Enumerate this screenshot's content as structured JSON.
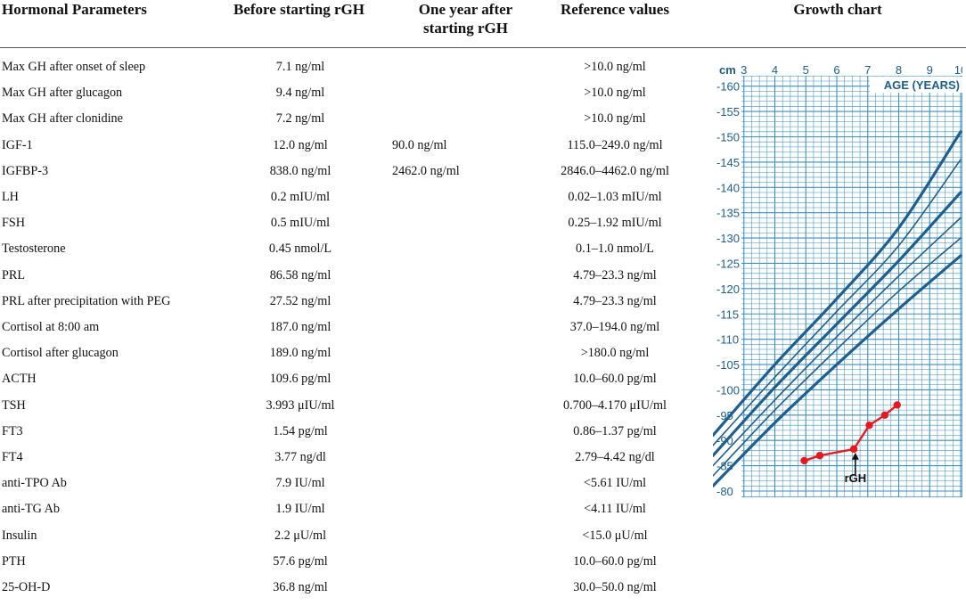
{
  "headers": {
    "parameter": "Hormonal Parameters",
    "before": "Before starting rGH",
    "after_line1": "One year after",
    "after_line2": "starting rGH",
    "reference": "Reference values",
    "growth": "Growth chart"
  },
  "rows": [
    {
      "param": "Max GH after onset of sleep",
      "before": "7.1 ng/ml",
      "after": "",
      "ref": ">10.0 ng/ml"
    },
    {
      "param": "Max GH after glucagon",
      "before": "9.4 ng/ml",
      "after": "",
      "ref": ">10.0 ng/ml"
    },
    {
      "param": "Max GH after clonidine",
      "before": "7.2 ng/ml",
      "after": "",
      "ref": ">10.0 ng/ml"
    },
    {
      "param": "IGF-1",
      "before": "12.0 ng/ml",
      "after": "90.0 ng/ml",
      "ref": "115.0–249.0 ng/ml"
    },
    {
      "param": "IGFBP-3",
      "before": "838.0 ng/ml",
      "after": "2462.0 ng/ml",
      "ref": "2846.0–4462.0 ng/ml"
    },
    {
      "param": "LH",
      "before": "0.2 mIU/ml",
      "after": "",
      "ref": "0.02–1.03 mIU/ml"
    },
    {
      "param": "FSH",
      "before": "0.5 mIU/ml",
      "after": "",
      "ref": "0.25–1.92 mIU/ml"
    },
    {
      "param": "Testosterone",
      "before": "0.45 nmol/L",
      "after": "",
      "ref": "0.1–1.0 nmol/L"
    },
    {
      "param": "PRL",
      "before": "86.58 ng/ml",
      "after": "",
      "ref": "4.79–23.3 ng/ml"
    },
    {
      "param": "PRL after precipitation with PEG",
      "before": "27.52 ng/ml",
      "after": "",
      "ref": "4.79–23.3 ng/ml"
    },
    {
      "param": "Cortisol at 8:00 am",
      "before": "187.0 ng/ml",
      "after": "",
      "ref": "37.0–194.0 ng/ml"
    },
    {
      "param": "Cortisol after glucagon",
      "before": "189.0 ng/ml",
      "after": "",
      "ref": ">180.0 ng/ml"
    },
    {
      "param": "ACTH",
      "before": "109.6 pg/ml",
      "after": "",
      "ref": "10.0–60.0 pg/ml"
    },
    {
      "param": "TSH",
      "before": "3.993 μIU/ml",
      "after": "",
      "ref": "0.700–4.170 μIU/ml"
    },
    {
      "param": "FT3",
      "before": "1.54 pg/ml",
      "after": "",
      "ref": "0.86–1.37 pg/ml"
    },
    {
      "param": "FT4",
      "before": "3.77 ng/dl",
      "after": "",
      "ref": "2.79–4.42 ng/dl"
    },
    {
      "param": "anti-TPO Ab",
      "before": "7.9 IU/ml",
      "after": "",
      "ref": "<5.61 IU/ml"
    },
    {
      "param": "anti-TG Ab",
      "before": "1.9 IU/ml",
      "after": "",
      "ref": "<4.11 IU/ml"
    },
    {
      "param": "Insulin",
      "before": "2.2 μU/ml",
      "after": "",
      "ref": "<15.0 μU/ml"
    },
    {
      "param": "PTH",
      "before": "57.6 pg/ml",
      "after": "",
      "ref": "10.0–60.0 pg/ml"
    },
    {
      "param": "25-OH-D",
      "before": "36.8 ng/ml",
      "after": "",
      "ref": "30.0–50.0 ng/ml"
    }
  ],
  "chart_data": {
    "type": "line",
    "unit_label": "cm",
    "xlabel": "AGE (YEARS)",
    "xlim": [
      2,
      10
    ],
    "ylim": [
      80,
      164
    ],
    "x_ticks": [
      3,
      4,
      5,
      6,
      7,
      8,
      9,
      10
    ],
    "y_ticks": [
      80,
      85,
      90,
      95,
      100,
      105,
      110,
      115,
      120,
      125,
      130,
      135,
      140,
      145,
      150,
      155,
      160
    ],
    "annotation": "rGH",
    "annotation_x": 6.6,
    "percentile_curves": [
      {
        "x": [
          2,
          4,
          6,
          8,
          10
        ],
        "y": [
          91.0,
          105.0,
          118.0,
          132.0,
          151.0
        ]
      },
      {
        "x": [
          2,
          4,
          6,
          8,
          10
        ],
        "y": [
          89.0,
          102.5,
          115.5,
          128.5,
          145.5
        ]
      },
      {
        "x": [
          2,
          4,
          6,
          8,
          10
        ],
        "y": [
          87.0,
          100.5,
          113.0,
          125.5,
          139.0
        ]
      },
      {
        "x": [
          2,
          4,
          6,
          8,
          10
        ],
        "y": [
          85.0,
          98.0,
          110.5,
          122.5,
          134.0
        ]
      },
      {
        "x": [
          2,
          4,
          6,
          8,
          10
        ],
        "y": [
          83.0,
          96.0,
          108.0,
          119.5,
          130.0
        ]
      },
      {
        "x": [
          2,
          4,
          6,
          8,
          10
        ],
        "y": [
          81.0,
          93.5,
          105.0,
          116.0,
          126.5
        ]
      }
    ],
    "patient": {
      "x": [
        4.95,
        5.45,
        6.55,
        7.05,
        7.55,
        7.95
      ],
      "y": [
        86.0,
        87.0,
        88.3,
        93.0,
        95.0,
        97.0
      ],
      "color": "#e8191e"
    },
    "colors": {
      "grid": "#3b8fbf",
      "curve": "#1d5f91",
      "text": "#1d5f91",
      "background": "#ffffff"
    }
  }
}
